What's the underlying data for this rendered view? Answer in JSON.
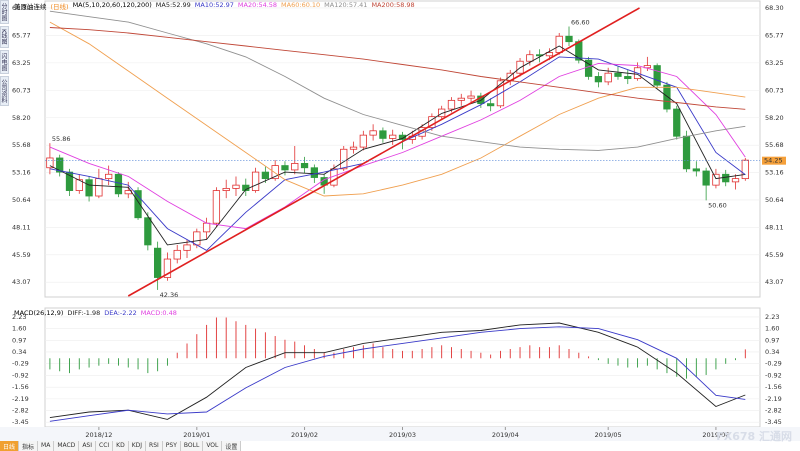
{
  "chart_data": [
    {
      "type": "candlestick",
      "title": "美原油连续",
      "period": "(日线)",
      "indicator": "MA(5,10,20,60,120,200)",
      "up_color": "#e03030",
      "down_color": "#2e9a3e",
      "ohlc": [
        [
          53.6,
          55.86,
          53.0,
          54.5
        ],
        [
          54.5,
          54.8,
          52.8,
          53.2
        ],
        [
          53.2,
          53.5,
          51.0,
          51.5
        ],
        [
          51.5,
          53.0,
          51.2,
          52.5
        ],
        [
          52.5,
          52.8,
          50.5,
          51.0
        ],
        [
          51.0,
          53.5,
          50.8,
          52.6
        ],
        [
          52.6,
          53.8,
          52.0,
          53.0
        ],
        [
          53.0,
          53.2,
          50.9,
          51.2
        ],
        [
          51.2,
          52.3,
          50.8,
          51.5
        ],
        [
          51.5,
          51.8,
          48.8,
          49.0
        ],
        [
          49.0,
          49.5,
          46.0,
          46.5
        ],
        [
          46.2,
          46.8,
          42.36,
          43.5
        ],
        [
          43.5,
          45.8,
          43.2,
          45.2
        ],
        [
          45.2,
          46.5,
          44.8,
          46.0
        ],
        [
          46.0,
          47.0,
          45.3,
          46.5
        ],
        [
          46.5,
          48.0,
          46.2,
          47.7
        ],
        [
          47.7,
          49.0,
          47.0,
          48.5
        ],
        [
          48.5,
          51.8,
          48.2,
          51.5
        ],
        [
          51.5,
          52.5,
          50.8,
          51.7
        ],
        [
          51.7,
          52.8,
          51.0,
          52.0
        ],
        [
          52.0,
          52.6,
          51.0,
          51.5
        ],
        [
          51.5,
          53.6,
          51.3,
          53.2
        ],
        [
          53.2,
          53.7,
          52.2,
          52.6
        ],
        [
          52.6,
          54.3,
          52.4,
          53.8
        ],
        [
          53.8,
          54.2,
          52.9,
          53.4
        ],
        [
          53.4,
          55.6,
          53.0,
          54.0
        ],
        [
          54.0,
          54.6,
          53.1,
          53.6
        ],
        [
          53.6,
          53.9,
          52.2,
          52.7
        ],
        [
          52.7,
          53.0,
          51.2,
          52.0
        ],
        [
          52.0,
          53.9,
          51.8,
          53.5
        ],
        [
          53.5,
          55.6,
          53.3,
          55.3
        ],
        [
          55.3,
          56.0,
          54.9,
          55.5
        ],
        [
          55.5,
          57.0,
          55.2,
          56.6
        ],
        [
          56.6,
          57.6,
          56.1,
          57.0
        ],
        [
          57.0,
          57.3,
          55.9,
          56.3
        ],
        [
          56.3,
          57.1,
          55.7,
          56.6
        ],
        [
          56.6,
          56.9,
          55.3,
          56.2
        ],
        [
          56.2,
          57.0,
          55.8,
          56.5
        ],
        [
          56.5,
          57.6,
          56.2,
          57.3
        ],
        [
          57.3,
          58.6,
          57.0,
          58.3
        ],
        [
          58.3,
          59.3,
          58.0,
          59.0
        ],
        [
          59.0,
          60.1,
          58.7,
          59.8
        ],
        [
          59.8,
          60.4,
          59.3,
          60.0
        ],
        [
          60.0,
          60.7,
          59.6,
          60.2
        ],
        [
          60.2,
          60.5,
          59.1,
          59.5
        ],
        [
          59.5,
          60.0,
          58.8,
          59.3
        ],
        [
          59.3,
          61.9,
          59.1,
          61.6
        ],
        [
          61.6,
          62.6,
          61.2,
          62.3
        ],
        [
          62.3,
          63.7,
          62.0,
          63.4
        ],
        [
          63.4,
          64.4,
          63.0,
          64.0
        ],
        [
          64.0,
          64.5,
          63.3,
          63.9
        ],
        [
          63.9,
          64.6,
          63.5,
          64.2
        ],
        [
          64.2,
          66.0,
          64.0,
          65.7
        ],
        [
          65.7,
          66.6,
          64.8,
          65.2
        ],
        [
          65.2,
          65.4,
          63.2,
          63.5
        ],
        [
          63.5,
          63.8,
          61.7,
          62.0
        ],
        [
          62.0,
          62.4,
          61.0,
          61.5
        ],
        [
          61.5,
          62.8,
          61.2,
          62.3
        ],
        [
          62.3,
          62.9,
          61.7,
          62.0
        ],
        [
          62.0,
          62.6,
          61.3,
          61.8
        ],
        [
          61.8,
          63.3,
          61.6,
          62.8
        ],
        [
          62.8,
          63.8,
          62.5,
          63.0
        ],
        [
          63.0,
          63.2,
          60.9,
          61.2
        ],
        [
          61.2,
          61.5,
          58.7,
          59.0
        ],
        [
          59.0,
          59.3,
          56.2,
          56.5
        ],
        [
          56.5,
          57.0,
          53.2,
          53.5
        ],
        [
          53.5,
          54.2,
          52.8,
          53.3
        ],
        [
          53.3,
          53.6,
          50.6,
          52.0
        ],
        [
          52.0,
          53.5,
          51.7,
          53.0
        ],
        [
          53.0,
          53.4,
          51.9,
          52.3
        ],
        [
          52.3,
          53.0,
          51.6,
          52.6
        ],
        [
          52.6,
          54.5,
          52.4,
          54.3
        ]
      ],
      "xlim": [
        -0.5,
        72.5
      ],
      "ylim": [
        41.8,
        68.85
      ],
      "yticks": [
        {
          "value": 68.3,
          "label": "68.30"
        },
        65.77,
        63.25,
        60.73,
        {
          "value": 58.2,
          "label": "58.20"
        },
        55.68,
        53.16,
        50.64,
        48.11,
        45.59,
        43.07
      ],
      "grid": true,
      "series": [
        {
          "name": "MA5:52.99",
          "color": "#222222",
          "x": [
            0,
            4,
            8,
            12,
            16,
            20,
            24,
            28,
            32,
            36,
            40,
            44,
            48,
            52,
            56,
            60,
            64,
            68,
            71
          ],
          "values": [
            53.8,
            52.0,
            51.8,
            46.5,
            47.0,
            51.6,
            53.2,
            53.0,
            55.3,
            56.3,
            58.6,
            59.8,
            62.8,
            64.8,
            62.6,
            62.2,
            59.5,
            52.6,
            52.99
          ]
        },
        {
          "name": "MA10:52.97",
          "color": "#3a3ac8",
          "x": [
            0,
            4,
            8,
            12,
            16,
            20,
            24,
            28,
            32,
            36,
            40,
            44,
            48,
            52,
            56,
            60,
            64,
            68,
            71
          ],
          "values": [
            53.5,
            52.8,
            52.0,
            48.0,
            46.0,
            49.5,
            52.5,
            53.2,
            54.0,
            56.0,
            57.6,
            59.4,
            61.5,
            63.8,
            63.6,
            62.3,
            61.0,
            55.0,
            52.97
          ]
        },
        {
          "name": "MA20:54.58",
          "color": "#e040e0",
          "x": [
            0,
            4,
            8,
            12,
            16,
            20,
            24,
            28,
            32,
            36,
            40,
            44,
            48,
            52,
            56,
            60,
            64,
            68,
            71
          ],
          "values": [
            55.5,
            54.0,
            52.8,
            50.5,
            48.5,
            48.0,
            50.0,
            52.5,
            53.8,
            55.0,
            56.5,
            58.0,
            59.8,
            62.0,
            63.2,
            63.0,
            62.0,
            58.5,
            54.58
          ]
        },
        {
          "name": "MA60:60.10",
          "color": "#f0a050",
          "x": [
            0,
            4,
            8,
            12,
            16,
            20,
            24,
            28,
            32,
            36,
            40,
            44,
            48,
            52,
            56,
            60,
            64,
            68,
            71
          ],
          "values": [
            67.0,
            65.0,
            62.5,
            60.0,
            57.5,
            55.0,
            52.5,
            51.0,
            51.2,
            52.0,
            53.0,
            54.5,
            56.5,
            58.5,
            60.0,
            61.0,
            61.0,
            60.5,
            60.1
          ]
        },
        {
          "name": "MA120:57.41",
          "color": "#909090",
          "x": [
            0,
            4,
            8,
            12,
            16,
            20,
            24,
            28,
            32,
            36,
            40,
            44,
            48,
            52,
            56,
            60,
            64,
            68,
            71
          ],
          "values": [
            68.0,
            67.5,
            67.0,
            66.0,
            65.0,
            63.8,
            62.0,
            60.0,
            58.5,
            57.5,
            56.5,
            56.0,
            55.5,
            55.3,
            55.2,
            55.5,
            56.3,
            57.0,
            57.41
          ]
        },
        {
          "name": "MA200:58.98",
          "color": "#c04838",
          "x": [
            0,
            4,
            8,
            12,
            16,
            20,
            24,
            28,
            32,
            36,
            40,
            44,
            48,
            52,
            56,
            60,
            64,
            68,
            71
          ],
          "values": [
            66.5,
            66.3,
            66.0,
            65.6,
            65.2,
            64.8,
            64.4,
            64.0,
            63.6,
            63.1,
            62.6,
            62.0,
            61.5,
            61.0,
            60.5,
            60.0,
            59.6,
            59.2,
            58.98
          ]
        }
      ],
      "annotations": [
        {
          "x": 0,
          "value": 55.86,
          "label": "55.86"
        },
        {
          "x": 11,
          "value": 42.36,
          "label": "42.36"
        },
        {
          "x": 53,
          "value": 66.6,
          "label": "66.60"
        },
        {
          "x": 67,
          "value": 50.6,
          "label": "50.60"
        }
      ],
      "trend_line": {
        "x": [
          8,
          60.2
        ],
        "values": [
          41.8,
          68.3
        ],
        "color": "#e02020"
      },
      "last_price": 54.25
    },
    {
      "type": "macd",
      "title": "MACD(26,12,9)",
      "xlim": [
        -0.5,
        72.5
      ],
      "ylim": [
        -3.6,
        2.55
      ],
      "yticks": [
        2.23,
        {
          "value": 1.6,
          "label": "1.60"
        },
        0.97,
        0.34,
        -0.29,
        -0.92,
        -1.56,
        -2.19,
        -2.82,
        -3.45
      ],
      "xticks": [
        {
          "value": 5,
          "label": "2018/12"
        },
        {
          "value": 15,
          "label": "2019/01"
        },
        {
          "value": 26,
          "label": "2019/02"
        },
        {
          "value": 36,
          "label": "2019/03"
        },
        {
          "value": 46.5,
          "label": "2019/04"
        },
        {
          "value": 57,
          "label": "2019/05"
        },
        {
          "value": 68,
          "label": "2019/06"
        }
      ],
      "histogram": {
        "name": "MACD:0.48",
        "color": "#e040e0",
        "up_color": "#e03030",
        "down_color": "#2e9a3e",
        "values": [
          -0.6,
          -0.7,
          -0.8,
          -0.6,
          -0.5,
          -0.4,
          -0.3,
          -0.4,
          -0.5,
          -0.6,
          -0.8,
          -0.7,
          -0.4,
          0.3,
          0.8,
          1.3,
          1.8,
          2.2,
          2.2,
          2.0,
          1.8,
          1.6,
          1.4,
          1.2,
          1.0,
          0.9,
          0.7,
          0.5,
          0.3,
          0.3,
          0.5,
          0.6,
          0.7,
          0.8,
          0.6,
          0.5,
          0.4,
          0.4,
          0.5,
          0.6,
          0.7,
          0.6,
          0.5,
          0.4,
          0.3,
          0.2,
          0.4,
          0.5,
          0.6,
          0.7,
          0.6,
          0.6,
          0.7,
          0.5,
          0.3,
          0.1,
          -0.1,
          -0.3,
          -0.4,
          -0.5,
          -0.5,
          -0.4,
          -0.6,
          -0.8,
          -1.0,
          -1.1,
          -1.0,
          -0.9,
          -0.6,
          -0.3,
          -0.1,
          0.48
        ]
      },
      "series": [
        {
          "name": "DIFF:-1.98",
          "color": "#222222",
          "x": [
            0,
            4,
            8,
            12,
            16,
            20,
            24,
            28,
            32,
            36,
            40,
            44,
            48,
            52,
            56,
            60,
            64,
            68,
            71
          ],
          "values": [
            -3.2,
            -2.9,
            -2.8,
            -3.3,
            -2.1,
            -0.5,
            0.3,
            0.3,
            0.8,
            1.1,
            1.4,
            1.5,
            1.8,
            1.9,
            1.4,
            0.6,
            -0.8,
            -2.6,
            -1.98
          ]
        },
        {
          "name": "DEA:-2.22",
          "color": "#3a3ac8",
          "x": [
            0,
            4,
            8,
            12,
            16,
            20,
            24,
            28,
            32,
            36,
            40,
            44,
            48,
            52,
            56,
            60,
            64,
            68,
            71
          ],
          "values": [
            -3.4,
            -3.1,
            -2.8,
            -3.0,
            -2.9,
            -1.6,
            -0.5,
            0.1,
            0.5,
            0.8,
            1.1,
            1.4,
            1.6,
            1.7,
            1.6,
            1.0,
            0.0,
            -2.0,
            -2.22
          ]
        }
      ]
    }
  ],
  "ui": {
    "sidebar": [
      "分时图",
      "K线图",
      "闪电图",
      "公司资料"
    ],
    "toolbar": [
      "日线",
      "指标",
      "MA",
      "MACD",
      "ASI",
      "CCI",
      "KD",
      "KDJ",
      "RSI",
      "PSY",
      "BOLL",
      "VOL",
      "设置"
    ],
    "watermark": "FX678 汇通网"
  }
}
